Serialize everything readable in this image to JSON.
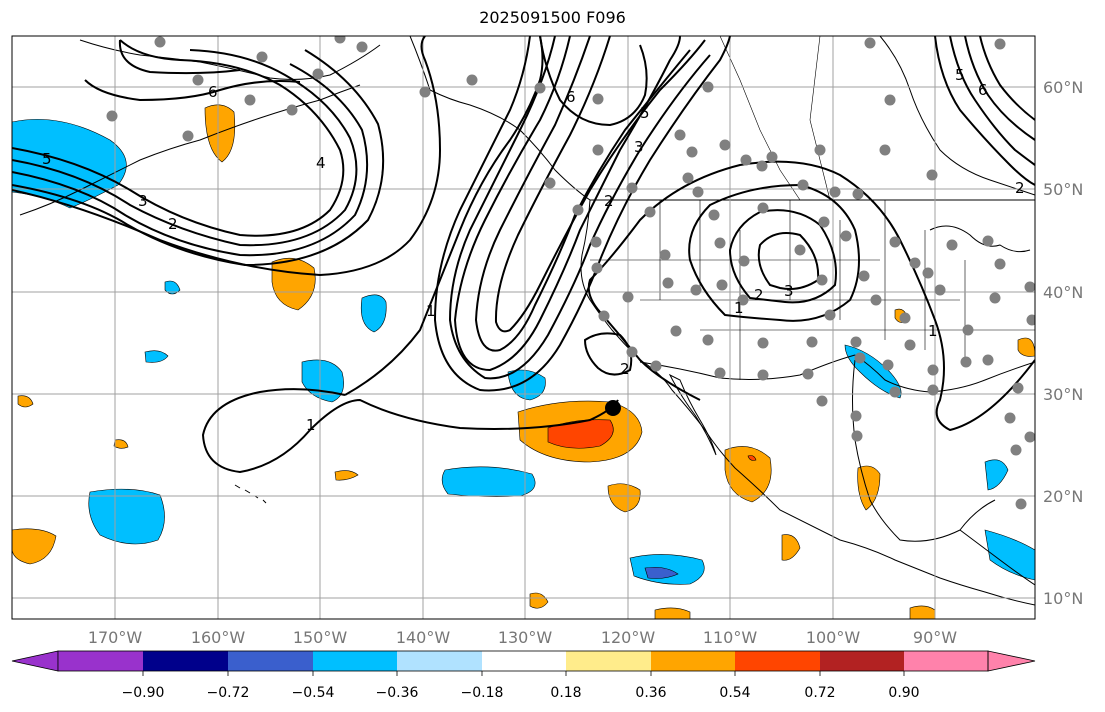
{
  "title": "2025091500 F096",
  "map": {
    "lon_ticks": [
      "170°W",
      "160°W",
      "150°W",
      "140°W",
      "130°W",
      "120°W",
      "110°W",
      "100°W",
      "90°W"
    ],
    "lat_ticks": [
      "60°N",
      "50°N",
      "40°N",
      "30°N",
      "20°N",
      "10°N"
    ],
    "grid": true,
    "contour_labels": [
      "5",
      "3",
      "2",
      "6",
      "4",
      "1",
      "2",
      "3",
      "5",
      "6",
      "2",
      "3",
      "2",
      "1",
      "1",
      "6",
      "5",
      "2",
      "1"
    ],
    "colors": {
      "contour": "#000000",
      "coast": "#000000",
      "station_dots": "#808080",
      "grid": "#a0a0a0"
    }
  },
  "colorbar": {
    "labels": [
      "−0.90",
      "−0.72",
      "−0.54",
      "−0.36",
      "−0.18",
      "0.18",
      "0.36",
      "0.54",
      "0.72",
      "0.90"
    ],
    "colors": [
      "#9932cc",
      "#00008b",
      "#3a5fcd",
      "#00bfff",
      "#b0e2ff",
      "#ffffff",
      "#ffec8b",
      "#ffa500",
      "#ff4500",
      "#b22222",
      "#ff82ab"
    ]
  }
}
